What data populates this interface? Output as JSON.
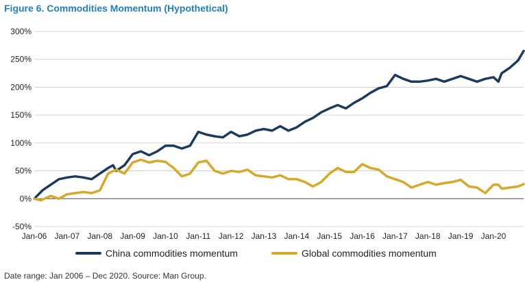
{
  "title": "Figure 6. Commodities Momentum (Hypothetical)",
  "footer": "Date range: Jan 2006 – Dec 2020. Source: Man Group.",
  "chart_data": {
    "type": "line",
    "title": "Figure 6. Commodities Momentum (Hypothetical)",
    "xlabel": "",
    "ylabel": "",
    "x_ticks": [
      "Jan-06",
      "Jan-07",
      "Jan-08",
      "Jan-09",
      "Jan-10",
      "Jan-11",
      "Jan-12",
      "Jan-13",
      "Jan-14",
      "Jan-15",
      "Jan-16",
      "Jan-17",
      "Jan-18",
      "Jan-19",
      "Jan-20"
    ],
    "x_range": [
      2006.0,
      2020.92
    ],
    "y_ticks": [
      "-50%",
      "0%",
      "50%",
      "100%",
      "150%",
      "200%",
      "250%",
      "300%"
    ],
    "ylim": [
      -50,
      300
    ],
    "y_unit": "%",
    "grid": true,
    "legend_position": "bottom",
    "series": [
      {
        "name": "China commodities momentum",
        "color": "#1b3a5c",
        "points": [
          [
            2006.0,
            0
          ],
          [
            2006.25,
            15
          ],
          [
            2006.5,
            25
          ],
          [
            2006.75,
            35
          ],
          [
            2007.0,
            38
          ],
          [
            2007.25,
            40
          ],
          [
            2007.5,
            38
          ],
          [
            2007.75,
            35
          ],
          [
            2008.0,
            45
          ],
          [
            2008.25,
            55
          ],
          [
            2008.4,
            60
          ],
          [
            2008.5,
            50
          ],
          [
            2008.75,
            60
          ],
          [
            2009.0,
            80
          ],
          [
            2009.25,
            85
          ],
          [
            2009.5,
            78
          ],
          [
            2009.75,
            85
          ],
          [
            2010.0,
            95
          ],
          [
            2010.25,
            95
          ],
          [
            2010.5,
            90
          ],
          [
            2010.75,
            95
          ],
          [
            2011.0,
            120
          ],
          [
            2011.25,
            115
          ],
          [
            2011.5,
            112
          ],
          [
            2011.75,
            110
          ],
          [
            2012.0,
            120
          ],
          [
            2012.25,
            112
          ],
          [
            2012.5,
            115
          ],
          [
            2012.75,
            122
          ],
          [
            2013.0,
            125
          ],
          [
            2013.25,
            122
          ],
          [
            2013.5,
            130
          ],
          [
            2013.75,
            122
          ],
          [
            2014.0,
            128
          ],
          [
            2014.25,
            138
          ],
          [
            2014.5,
            145
          ],
          [
            2014.75,
            155
          ],
          [
            2015.0,
            162
          ],
          [
            2015.25,
            168
          ],
          [
            2015.5,
            162
          ],
          [
            2015.75,
            172
          ],
          [
            2016.0,
            180
          ],
          [
            2016.25,
            190
          ],
          [
            2016.5,
            198
          ],
          [
            2016.75,
            202
          ],
          [
            2017.0,
            222
          ],
          [
            2017.25,
            215
          ],
          [
            2017.5,
            210
          ],
          [
            2017.75,
            210
          ],
          [
            2018.0,
            212
          ],
          [
            2018.25,
            215
          ],
          [
            2018.5,
            210
          ],
          [
            2018.75,
            215
          ],
          [
            2019.0,
            220
          ],
          [
            2019.25,
            215
          ],
          [
            2019.5,
            210
          ],
          [
            2019.75,
            215
          ],
          [
            2020.0,
            218
          ],
          [
            2020.15,
            210
          ],
          [
            2020.25,
            225
          ],
          [
            2020.5,
            235
          ],
          [
            2020.75,
            248
          ],
          [
            2020.92,
            265
          ]
        ]
      },
      {
        "name": "Global commodities momentum",
        "color": "#d6a92b",
        "points": [
          [
            2006.0,
            0
          ],
          [
            2006.2,
            -3
          ],
          [
            2006.5,
            5
          ],
          [
            2006.75,
            0
          ],
          [
            2007.0,
            8
          ],
          [
            2007.25,
            10
          ],
          [
            2007.5,
            12
          ],
          [
            2007.75,
            10
          ],
          [
            2008.0,
            15
          ],
          [
            2008.25,
            45
          ],
          [
            2008.5,
            52
          ],
          [
            2008.75,
            45
          ],
          [
            2009.0,
            65
          ],
          [
            2009.25,
            70
          ],
          [
            2009.5,
            65
          ],
          [
            2009.75,
            68
          ],
          [
            2010.0,
            66
          ],
          [
            2010.25,
            55
          ],
          [
            2010.5,
            40
          ],
          [
            2010.75,
            45
          ],
          [
            2011.0,
            65
          ],
          [
            2011.25,
            68
          ],
          [
            2011.5,
            50
          ],
          [
            2011.75,
            45
          ],
          [
            2012.0,
            50
          ],
          [
            2012.25,
            48
          ],
          [
            2012.5,
            52
          ],
          [
            2012.75,
            42
          ],
          [
            2013.0,
            40
          ],
          [
            2013.25,
            38
          ],
          [
            2013.5,
            42
          ],
          [
            2013.75,
            35
          ],
          [
            2014.0,
            35
          ],
          [
            2014.25,
            30
          ],
          [
            2014.5,
            22
          ],
          [
            2014.75,
            30
          ],
          [
            2015.0,
            45
          ],
          [
            2015.25,
            55
          ],
          [
            2015.5,
            48
          ],
          [
            2015.75,
            48
          ],
          [
            2016.0,
            62
          ],
          [
            2016.25,
            55
          ],
          [
            2016.5,
            52
          ],
          [
            2016.75,
            40
          ],
          [
            2017.0,
            35
          ],
          [
            2017.25,
            30
          ],
          [
            2017.5,
            20
          ],
          [
            2017.75,
            25
          ],
          [
            2018.0,
            30
          ],
          [
            2018.25,
            25
          ],
          [
            2018.5,
            28
          ],
          [
            2018.75,
            30
          ],
          [
            2019.0,
            34
          ],
          [
            2019.25,
            22
          ],
          [
            2019.5,
            20
          ],
          [
            2019.75,
            10
          ],
          [
            2020.0,
            25
          ],
          [
            2020.15,
            25
          ],
          [
            2020.25,
            18
          ],
          [
            2020.5,
            20
          ],
          [
            2020.75,
            22
          ],
          [
            2020.92,
            26
          ]
        ]
      }
    ]
  }
}
